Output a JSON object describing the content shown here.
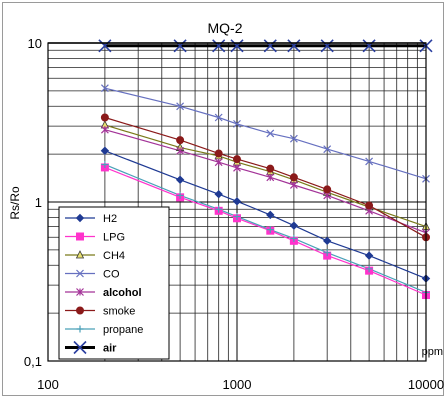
{
  "chart_data": {
    "type": "line",
    "title": "MQ-2",
    "ylabel": "Rs/Ro",
    "xunit": "ppm",
    "xscale": "log",
    "yscale": "log",
    "xlim": [
      100,
      10000
    ],
    "ylim": [
      0.1,
      10
    ],
    "xticks": [
      "100",
      "1000",
      "10000"
    ],
    "yticks": [
      "0,1",
      "1",
      "10"
    ],
    "grid": true,
    "legend_position": "bottom-left",
    "series": [
      {
        "name": "H2",
        "color": "#1f3a93",
        "marker": "diamond",
        "x": [
          200,
          500,
          800,
          1000,
          1500,
          2000,
          3000,
          5000,
          10000
        ],
        "y": [
          2.1,
          1.38,
          1.12,
          1.01,
          0.83,
          0.71,
          0.57,
          0.46,
          0.33
        ]
      },
      {
        "name": "LPG",
        "color": "#ff33cc",
        "marker": "square",
        "x": [
          200,
          500,
          800,
          1000,
          1500,
          2000,
          3000,
          5000,
          10000
        ],
        "y": [
          1.65,
          1.07,
          0.88,
          0.79,
          0.66,
          0.57,
          0.46,
          0.37,
          0.26
        ]
      },
      {
        "name": "CH4",
        "color": "#7a7a1a",
        "marker": "triangle",
        "x": [
          200,
          500,
          800,
          1000,
          1500,
          2000,
          3000,
          5000,
          10000
        ],
        "y": [
          3.05,
          2.2,
          1.95,
          1.78,
          1.55,
          1.38,
          1.15,
          0.93,
          0.7
        ]
      },
      {
        "name": "CO",
        "color": "#6670c0",
        "marker": "x",
        "x": [
          200,
          500,
          800,
          1000,
          1500,
          2000,
          3000,
          5000,
          10000
        ],
        "y": [
          5.2,
          4.0,
          3.4,
          3.1,
          2.7,
          2.5,
          2.15,
          1.8,
          1.4
        ]
      },
      {
        "name": "alcohol",
        "color": "#a33398",
        "marker": "star",
        "x": [
          200,
          500,
          800,
          1000,
          1500,
          2000,
          3000,
          5000,
          10000
        ],
        "y": [
          2.85,
          2.1,
          1.78,
          1.64,
          1.43,
          1.28,
          1.1,
          0.88,
          0.64
        ]
      },
      {
        "name": "smoke",
        "color": "#8b1a1a",
        "marker": "circle",
        "x": [
          200,
          500,
          800,
          1000,
          1500,
          2000,
          3000,
          5000,
          10000
        ],
        "y": [
          3.4,
          2.45,
          2.02,
          1.86,
          1.62,
          1.43,
          1.2,
          0.95,
          0.6
        ]
      },
      {
        "name": "propane",
        "color": "#4aa0b8",
        "marker": "plus",
        "x": [
          200,
          500,
          800,
          1000,
          1500,
          2000,
          3000,
          5000,
          10000
        ],
        "y": [
          1.72,
          1.1,
          0.9,
          0.81,
          0.67,
          0.59,
          0.48,
          0.38,
          0.27
        ]
      },
      {
        "name": "air",
        "color": "#000000",
        "marker": "bigx",
        "thick": true,
        "x": [
          200,
          500,
          800,
          1000,
          1500,
          2000,
          3000,
          5000,
          10000
        ],
        "y": [
          9.6,
          9.6,
          9.6,
          9.6,
          9.6,
          9.6,
          9.6,
          9.6,
          9.6
        ]
      }
    ]
  }
}
